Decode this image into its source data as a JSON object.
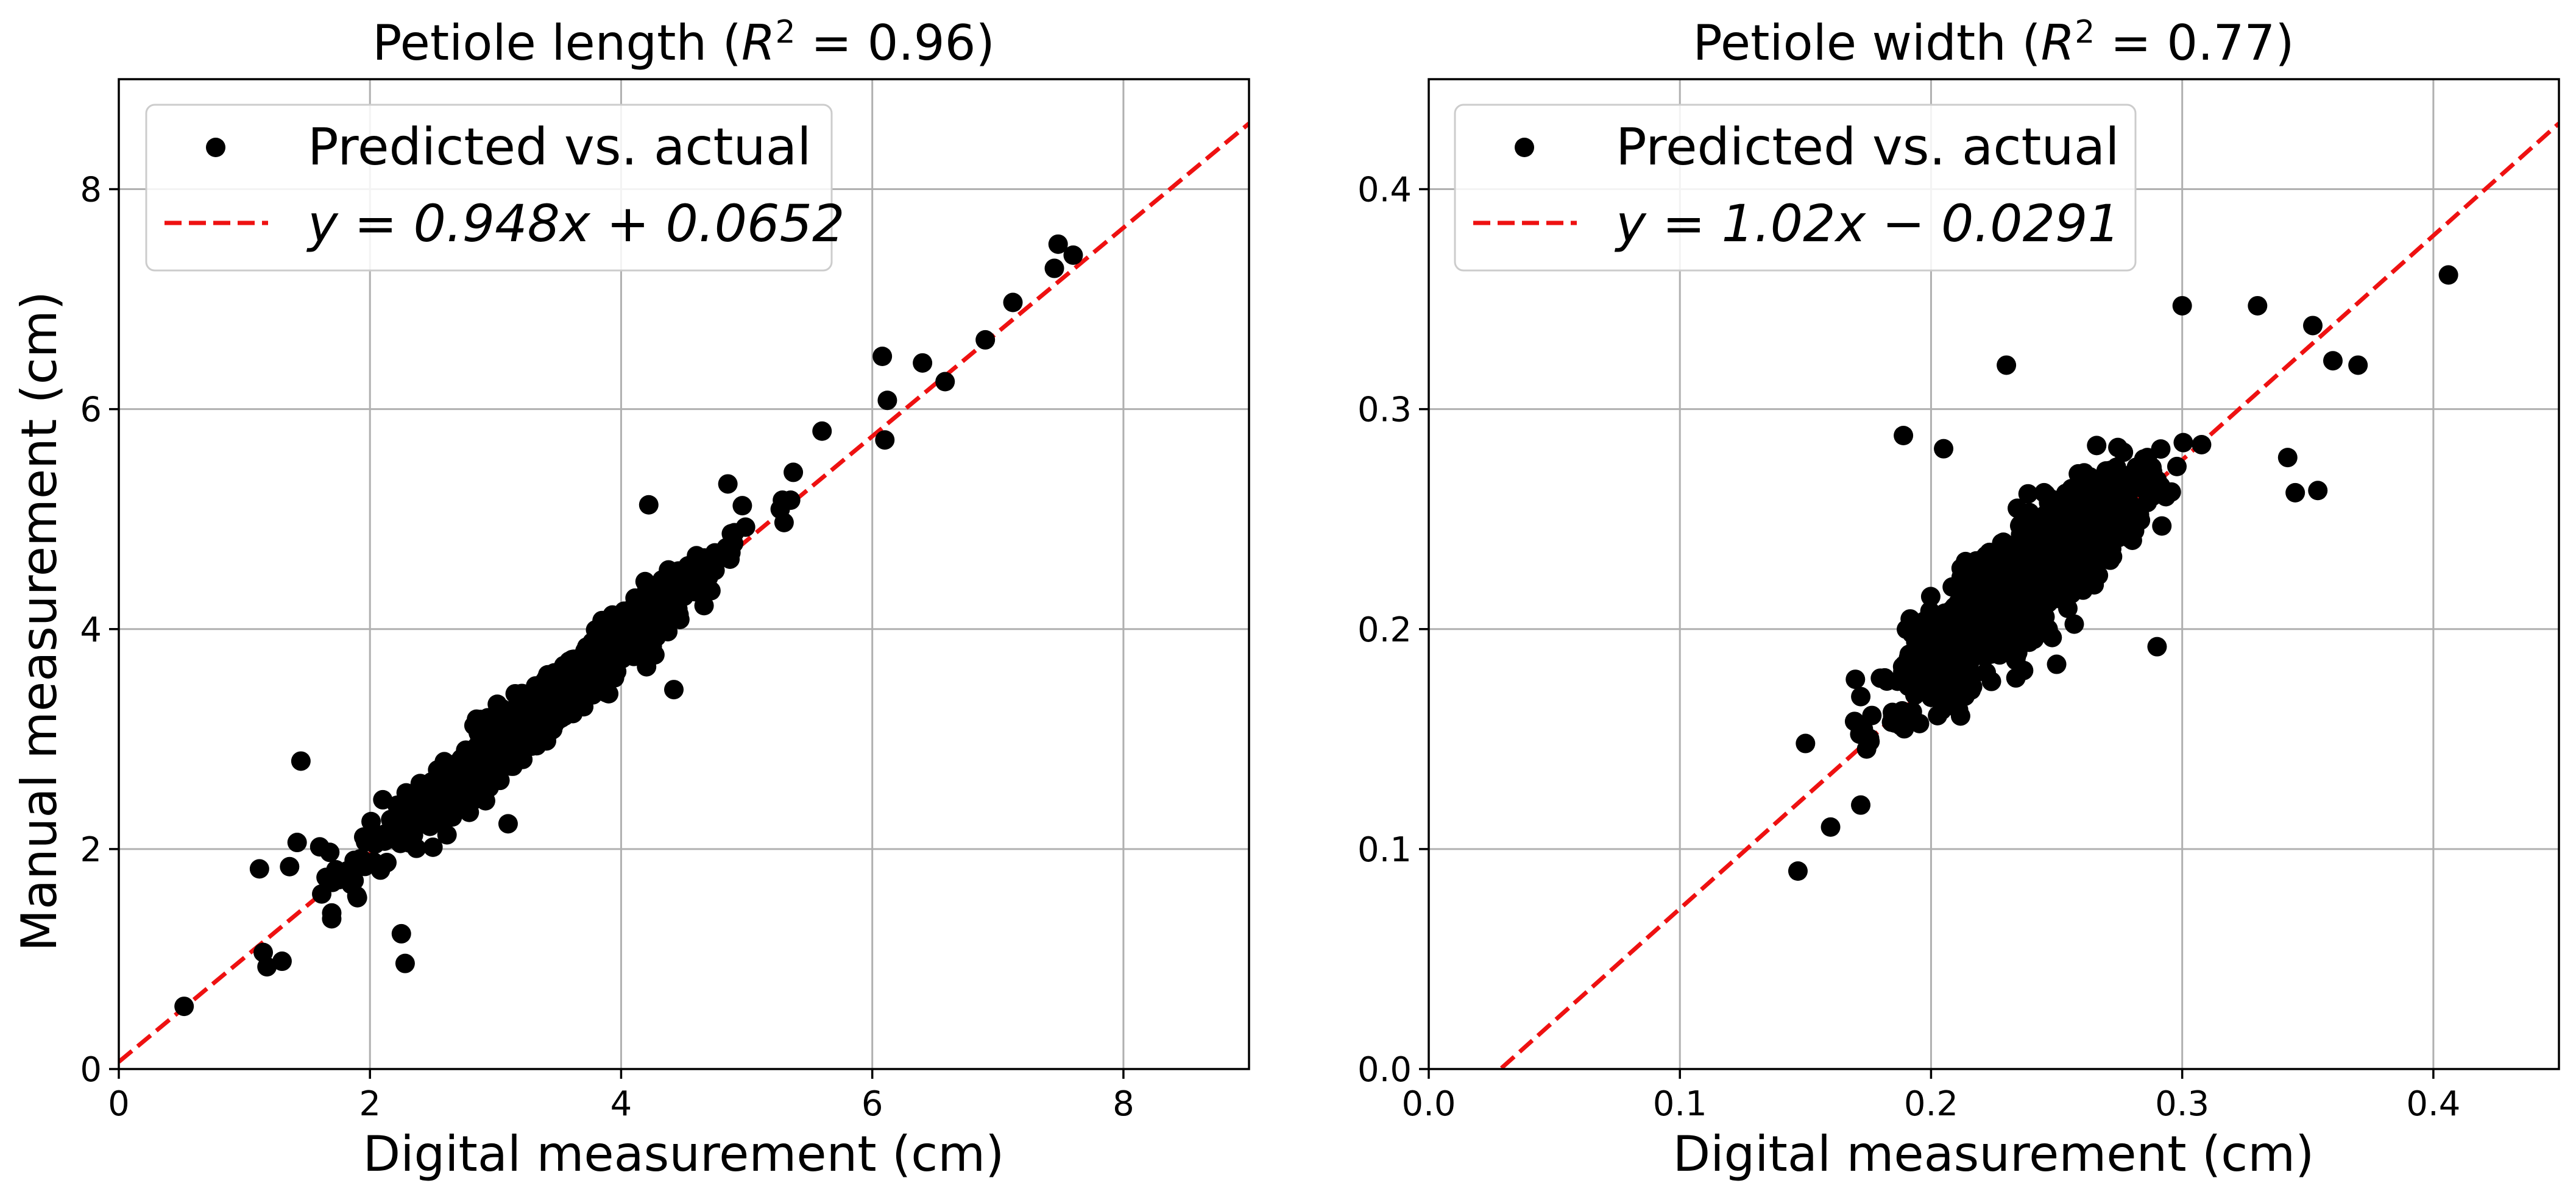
{
  "figure": {
    "ylabel": "Manual measurement (cm)"
  },
  "chart_data": [
    {
      "type": "scatter",
      "title": "Petiole length (R² = 0.96)",
      "title_text": "Petiole length (",
      "title_r2": "R",
      "title_sup": "2",
      "title_value": " = 0.96)",
      "xlabel": "Digital measurement (cm)",
      "ylabel": "Manual measurement (cm)",
      "xlim": [
        0,
        9
      ],
      "ylim": [
        0,
        9
      ],
      "xticks": [
        0,
        2,
        4,
        6,
        8
      ],
      "yticks": [
        0,
        2,
        4,
        6,
        8
      ],
      "grid": true,
      "legend_position": "top-left",
      "marker_color": "#000000",
      "fit_color": "#ee1111",
      "legend": {
        "points": "Predicted vs. actual",
        "fit": "y = 0.948x + 0.0652"
      },
      "fit": {
        "slope": 0.948,
        "intercept": 0.0652
      },
      "n_points_approx": 1000,
      "highlighted_points": [
        [
          0.52,
          0.57
        ],
        [
          1.12,
          1.82
        ],
        [
          1.15,
          1.06
        ],
        [
          1.18,
          0.93
        ],
        [
          1.3,
          0.98
        ],
        [
          1.36,
          1.84
        ],
        [
          1.42,
          2.06
        ],
        [
          1.45,
          2.8
        ],
        [
          1.6,
          2.02
        ],
        [
          1.68,
          1.97
        ],
        [
          2.25,
          1.23
        ],
        [
          2.28,
          0.96
        ],
        [
          3.1,
          2.23
        ],
        [
          4.22,
          5.13
        ],
        [
          4.42,
          3.45
        ],
        [
          4.85,
          5.32
        ],
        [
          5.6,
          5.8
        ],
        [
          6.08,
          6.48
        ],
        [
          6.1,
          5.72
        ],
        [
          6.12,
          6.08
        ],
        [
          6.4,
          6.42
        ],
        [
          6.58,
          6.25
        ],
        [
          6.9,
          6.63
        ],
        [
          7.12,
          6.97
        ],
        [
          7.45,
          7.28
        ],
        [
          7.48,
          7.5
        ],
        [
          7.6,
          7.4
        ]
      ]
    },
    {
      "type": "scatter",
      "title": "Petiole width (R² = 0.77)",
      "title_text": "Petiole width (",
      "title_r2": "R",
      "title_sup": "2",
      "title_value": " = 0.77)",
      "xlabel": "Digital measurement (cm)",
      "ylabel": "",
      "xlim": [
        0,
        0.45
      ],
      "ylim": [
        0,
        0.45
      ],
      "xticks": [
        0.0,
        0.1,
        0.2,
        0.3,
        0.4
      ],
      "yticks": [
        0.0,
        0.1,
        0.2,
        0.3,
        0.4
      ],
      "xtick_labels": [
        "0.0",
        "0.1",
        "0.2",
        "0.3",
        "0.4"
      ],
      "ytick_labels": [
        "0.0",
        "0.1",
        "0.2",
        "0.3",
        "0.4"
      ],
      "grid": true,
      "legend_position": "top-left",
      "marker_color": "#000000",
      "fit_color": "#ee1111",
      "legend": {
        "points": "Predicted vs. actual",
        "fit": "y = 1.02x − 0.0291"
      },
      "fit": {
        "slope": 1.02,
        "intercept": -0.0291
      },
      "n_points_approx": 1000,
      "highlighted_points": [
        [
          0.147,
          0.09
        ],
        [
          0.15,
          0.148
        ],
        [
          0.16,
          0.11
        ],
        [
          0.172,
          0.12
        ],
        [
          0.189,
          0.288
        ],
        [
          0.205,
          0.282
        ],
        [
          0.23,
          0.32
        ],
        [
          0.245,
          0.262
        ],
        [
          0.25,
          0.184
        ],
        [
          0.29,
          0.192
        ],
        [
          0.3,
          0.347
        ],
        [
          0.33,
          0.347
        ],
        [
          0.342,
          0.278
        ],
        [
          0.345,
          0.262
        ],
        [
          0.352,
          0.338
        ],
        [
          0.354,
          0.263
        ],
        [
          0.36,
          0.322
        ],
        [
          0.37,
          0.32
        ],
        [
          0.406,
          0.361
        ]
      ]
    }
  ]
}
